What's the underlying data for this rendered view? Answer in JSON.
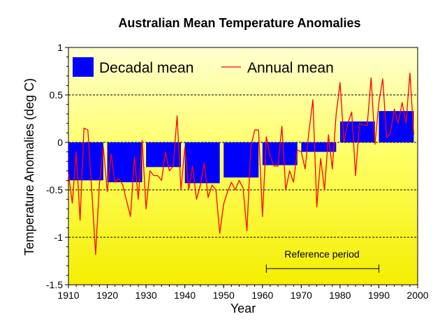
{
  "chart_data": {
    "type": "bar",
    "title": "Australian Mean Temperature Anomalies",
    "xlabel": "Year",
    "ylabel": "Temperature Anomalies (deg C)",
    "xlim": [
      1910,
      2000
    ],
    "ylim": [
      -1.5,
      1
    ],
    "x_ticks": [
      "1910",
      "1920",
      "1930",
      "1940",
      "1950",
      "1960",
      "1970",
      "1980",
      "1990",
      "2000"
    ],
    "y_ticks": [
      "1",
      "0.5",
      "0",
      "-0.5",
      "-1",
      "-1.5"
    ],
    "grid": "horizontal dashed at 0.5, 0, -0.5, -1",
    "background": "gradient yellow",
    "legend": {
      "position": "top-left",
      "entries": [
        "Decadal mean",
        "Annual mean"
      ]
    },
    "series": [
      {
        "name": "Decadal mean",
        "kind": "bar",
        "color": "#0000ff",
        "decades": [
          {
            "start": 1910,
            "end": 1919,
            "value": -0.4
          },
          {
            "start": 1920,
            "end": 1929,
            "value": -0.42
          },
          {
            "start": 1930,
            "end": 1939,
            "value": -0.26
          },
          {
            "start": 1940,
            "end": 1949,
            "value": -0.43
          },
          {
            "start": 1950,
            "end": 1959,
            "value": -0.37
          },
          {
            "start": 1960,
            "end": 1969,
            "value": -0.24
          },
          {
            "start": 1970,
            "end": 1979,
            "value": -0.1
          },
          {
            "start": 1980,
            "end": 1989,
            "value": 0.22
          },
          {
            "start": 1990,
            "end": 1999,
            "value": 0.33
          }
        ]
      },
      {
        "name": "Annual mean",
        "kind": "line",
        "color": "#ff0000",
        "x": [
          1910,
          1911,
          1912,
          1913,
          1914,
          1915,
          1916,
          1917,
          1918,
          1919,
          1920,
          1921,
          1922,
          1923,
          1924,
          1925,
          1926,
          1927,
          1928,
          1929,
          1930,
          1931,
          1932,
          1933,
          1934,
          1935,
          1936,
          1937,
          1938,
          1939,
          1940,
          1941,
          1942,
          1943,
          1944,
          1945,
          1946,
          1947,
          1948,
          1949,
          1950,
          1951,
          1952,
          1953,
          1954,
          1955,
          1956,
          1957,
          1958,
          1959,
          1960,
          1961,
          1962,
          1963,
          1964,
          1965,
          1966,
          1967,
          1968,
          1969,
          1970,
          1971,
          1972,
          1973,
          1974,
          1975,
          1976,
          1977,
          1978,
          1979,
          1980,
          1981,
          1982,
          1983,
          1984,
          1985,
          1986,
          1987,
          1988,
          1989,
          1990,
          1991,
          1992,
          1993,
          1994,
          1995,
          1996,
          1997,
          1998,
          1999
        ],
        "y": [
          -0.33,
          -0.64,
          -0.1,
          -0.82,
          0.15,
          0.13,
          -0.5,
          -1.18,
          -0.43,
          -0.05,
          -0.52,
          -0.12,
          -0.42,
          -0.38,
          -0.45,
          -0.62,
          -0.78,
          -0.15,
          -0.6,
          0.02,
          -0.7,
          -0.3,
          -0.35,
          -0.35,
          -0.4,
          -0.1,
          -0.3,
          -0.25,
          0.28,
          -0.5,
          -0.05,
          -0.5,
          -0.25,
          -0.6,
          -0.45,
          -0.22,
          -0.58,
          -0.45,
          -0.5,
          -0.96,
          -0.65,
          -0.52,
          -0.42,
          -0.5,
          -0.4,
          -0.48,
          -0.93,
          -0.05,
          0.13,
          0.13,
          -0.78,
          0.06,
          -0.15,
          -0.25,
          -0.25,
          0.17,
          -0.5,
          -0.3,
          -0.42,
          -0.08,
          -0.1,
          -0.28,
          0.12,
          0.45,
          -0.68,
          -0.17,
          -0.5,
          0.08,
          -0.28,
          0.3,
          0.63,
          0.0,
          0.2,
          0.32,
          -0.35,
          0.2,
          0.18,
          0.18,
          0.68,
          -0.02,
          0.42,
          0.67,
          0.05,
          0.1,
          0.35,
          0.2,
          0.42,
          0.2,
          0.73,
          0.08
        ]
      }
    ],
    "annotations": [
      {
        "text": "Reference period",
        "x_start": 1961,
        "x_end": 1990,
        "y": -1.33
      }
    ]
  }
}
